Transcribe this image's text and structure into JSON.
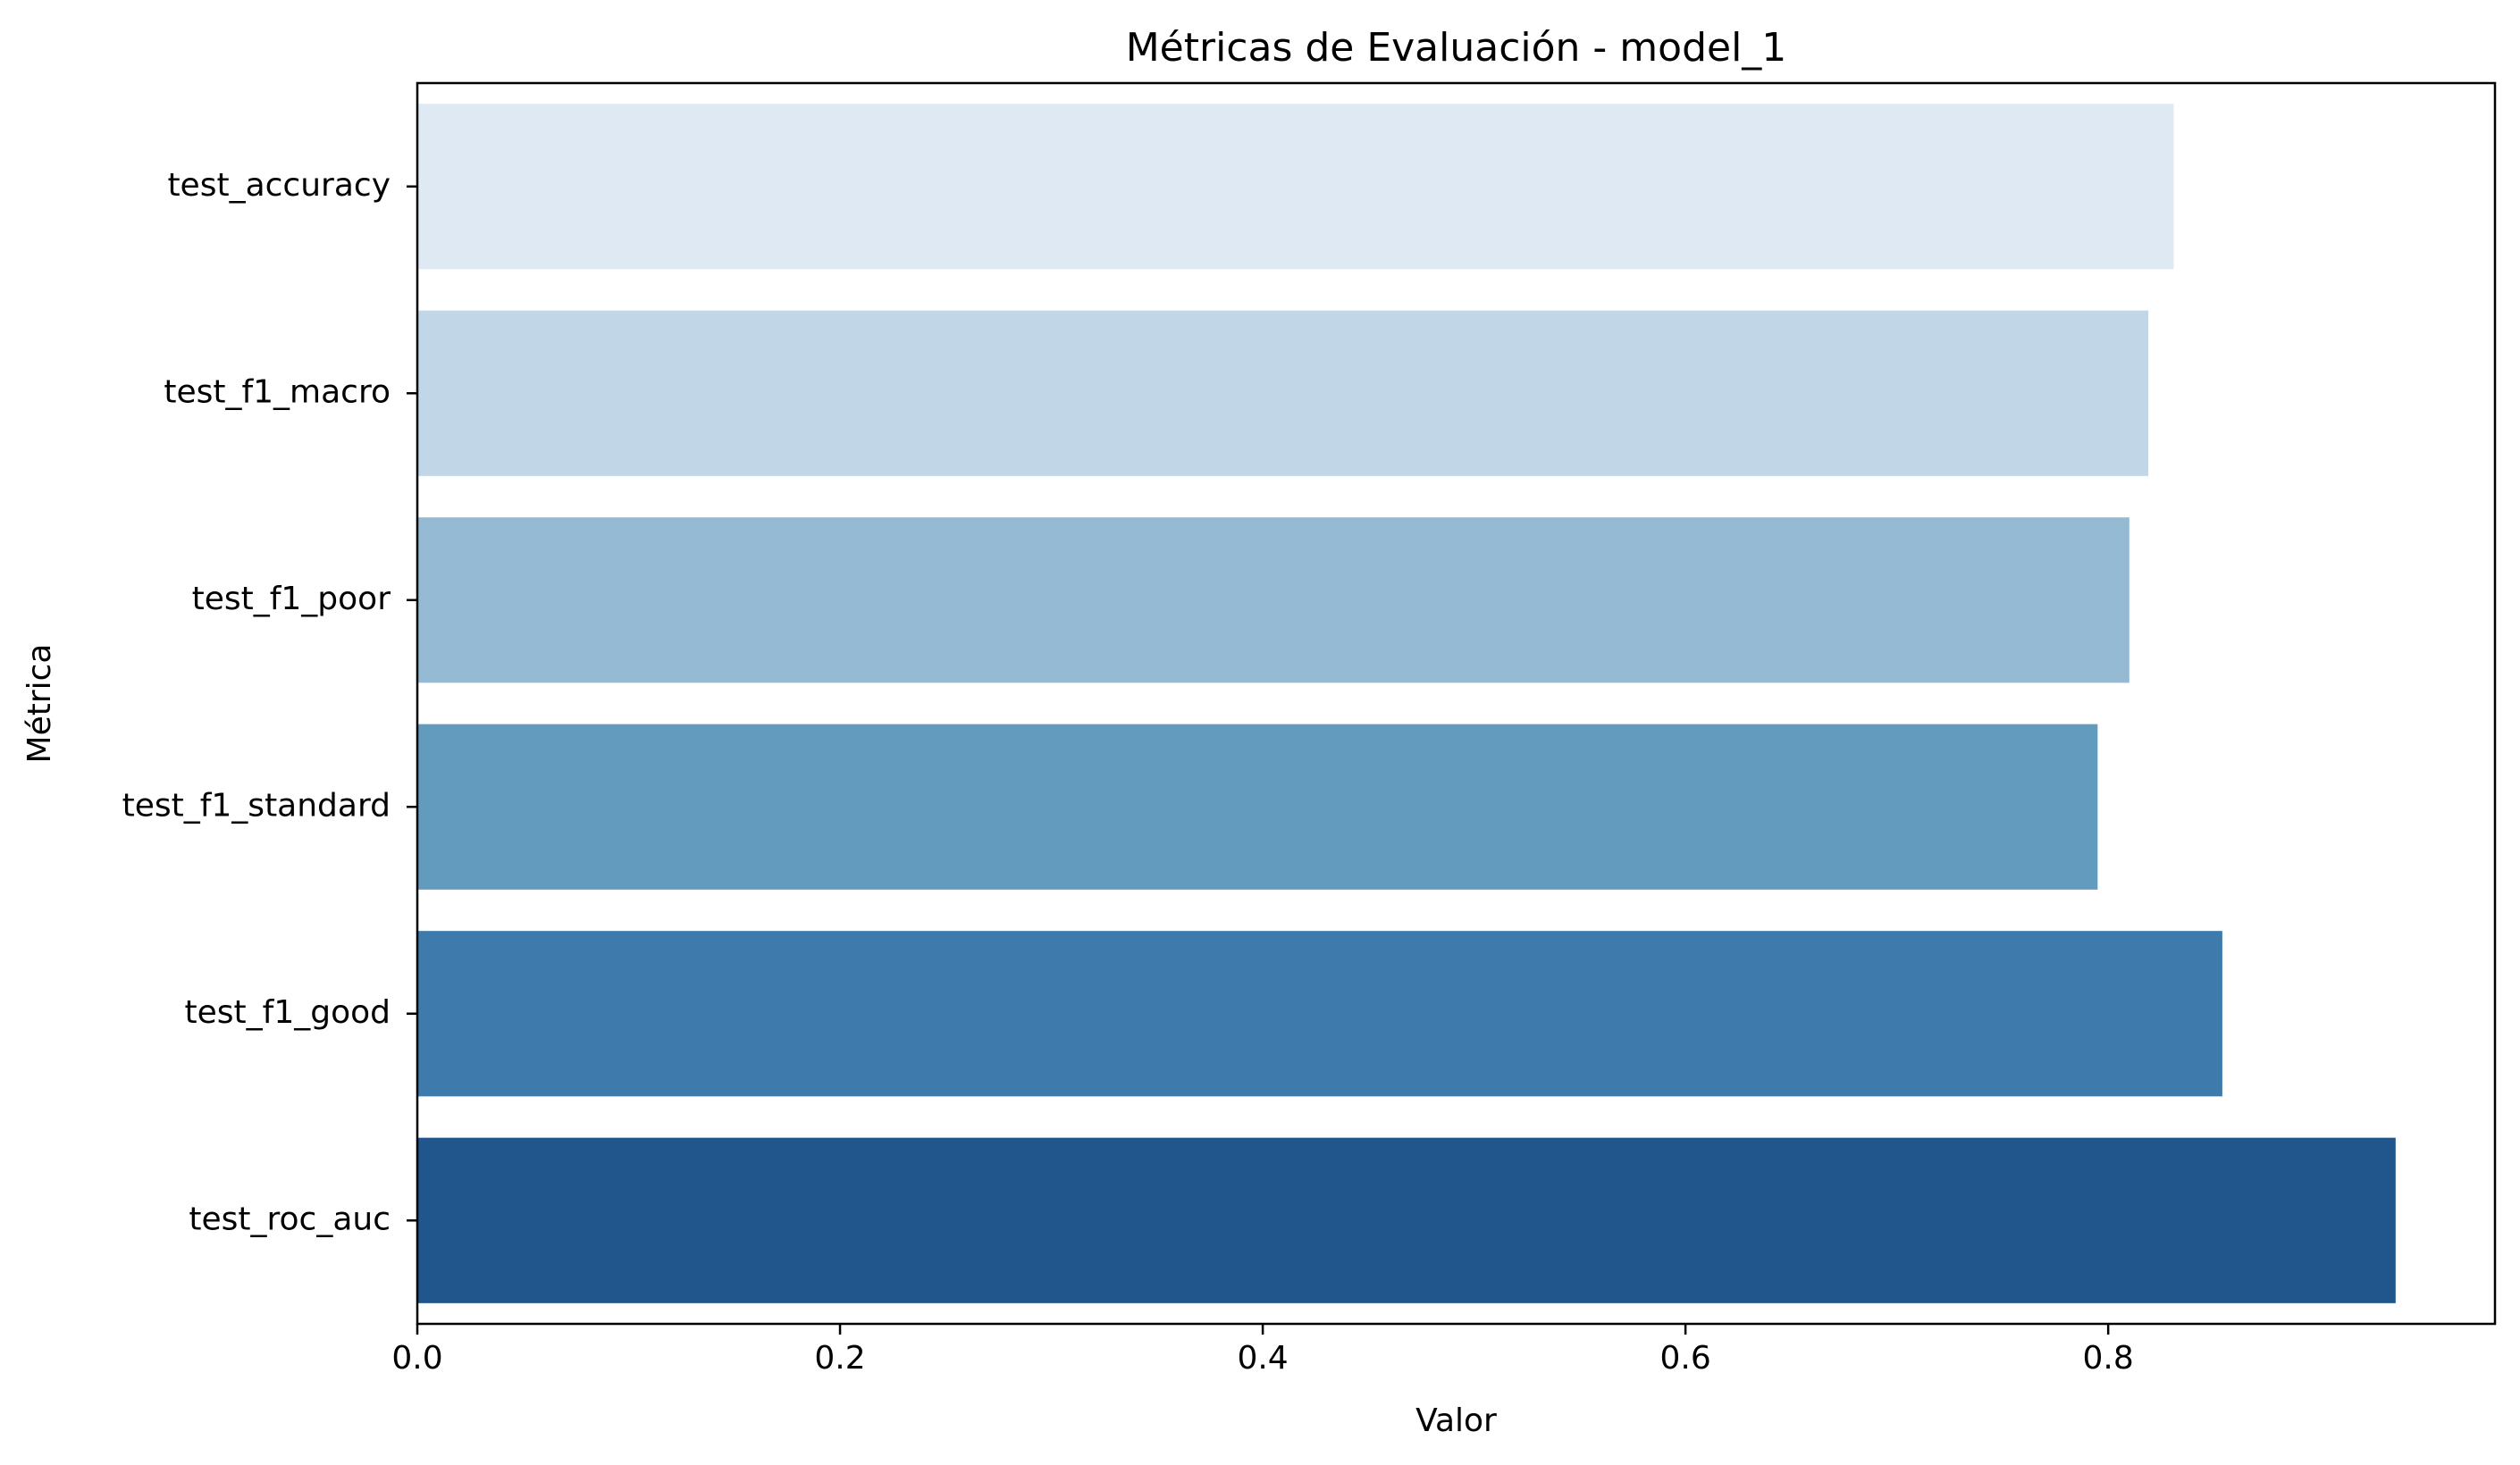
{
  "chart_data": {
    "type": "bar",
    "orientation": "horizontal",
    "title": "Métricas de Evaluación - model_1",
    "xlabel": "Valor",
    "ylabel": "Métrica",
    "categories": [
      "test_accuracy",
      "test_f1_macro",
      "test_f1_poor",
      "test_f1_standard",
      "test_f1_good",
      "test_roc_auc"
    ],
    "values": [
      0.831,
      0.819,
      0.81,
      0.795,
      0.854,
      0.936
    ],
    "colors": [
      "#dfe9f3",
      "#c1d6e7",
      "#95bbd4",
      "#639bbf",
      "#3e7aab",
      "#21568d"
    ],
    "xlim": [
      0,
      0.983
    ],
    "xticks": [
      0.0,
      0.2,
      0.4,
      0.6,
      0.8
    ],
    "xtick_labels": [
      "0.0",
      "0.2",
      "0.4",
      "0.6",
      "0.8"
    ],
    "grid": false,
    "legend": false
  }
}
